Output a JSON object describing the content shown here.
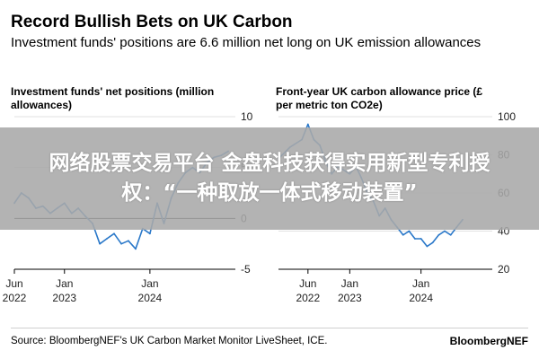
{
  "header": {
    "title": "Record Bullish Bets on UK Carbon",
    "subtitle": "Investment funds' positions are 6.6 million net long on UK emission allowances"
  },
  "banner": {
    "text": "网络股票交易平台 金盘科技获得实用新型专利授权：“一种取放一体式移动装置”"
  },
  "footer": {
    "source": "Source: BloombergNEF's UK Carbon Market Monitor LiveSheet, ICE.",
    "brand": "BloombergNEF"
  },
  "colors": {
    "line": "#2a78c9",
    "zero_line": "#000000",
    "axis": "#000000"
  },
  "chart_data": [
    {
      "type": "line",
      "title": "Investment funds' net positions (million allowances)",
      "xlabel": "",
      "ylabel": "",
      "ylim": [
        -5,
        10
      ],
      "yticks": [
        10,
        5,
        0,
        -5
      ],
      "xlim": [
        "2022-06-01",
        "2024-12-31"
      ],
      "xticks": [
        {
          "date": "2022-06-01",
          "label": [
            "Jun",
            "2022"
          ]
        },
        {
          "date": "2023-01-01",
          "label": [
            "Jan",
            "2023"
          ]
        },
        {
          "date": "2024-01-01",
          "label": [
            "Jan",
            "2024"
          ]
        }
      ],
      "zero_line": 0,
      "x": [
        "2022-06-01",
        "2022-07-01",
        "2022-08-01",
        "2022-09-01",
        "2022-10-01",
        "2022-11-01",
        "2022-12-01",
        "2023-01-01",
        "2023-02-01",
        "2023-03-01",
        "2023-04-01",
        "2023-05-01",
        "2023-06-01",
        "2023-07-01",
        "2023-08-01",
        "2023-09-01",
        "2023-10-01",
        "2023-11-01",
        "2023-12-01",
        "2024-01-01",
        "2024-02-01",
        "2024-03-01",
        "2024-04-01",
        "2024-05-01",
        "2024-06-01",
        "2024-07-01",
        "2024-08-01",
        "2024-09-01",
        "2024-10-01",
        "2024-11-01",
        "2024-12-01"
      ],
      "values": [
        1.5,
        2.5,
        2.0,
        1.0,
        1.2,
        0.5,
        1.0,
        1.5,
        0.5,
        1.0,
        0.2,
        -0.5,
        -2.5,
        -2.0,
        -1.5,
        -2.5,
        -2.2,
        -3.0,
        -1.0,
        -1.5,
        1.5,
        -0.5,
        2.0,
        3.5,
        4.5,
        5.0,
        4.5,
        5.5,
        6.0,
        6.2,
        6.6
      ]
    },
    {
      "type": "line",
      "title": "Front-year UK carbon allowance price (£ per metric ton CO2e)",
      "xlabel": "",
      "ylabel": "",
      "ylim": [
        20,
        100
      ],
      "yticks": [
        100,
        80,
        60,
        40,
        20
      ],
      "xlim": [
        "2022-01-01",
        "2024-12-31"
      ],
      "xticks": [
        {
          "date": "2022-06-01",
          "label": [
            "Jun",
            "2022"
          ]
        },
        {
          "date": "2023-01-01",
          "label": [
            "Jan",
            "2023"
          ]
        },
        {
          "date": "2024-01-01",
          "label": [
            "Jan",
            "2024"
          ]
        }
      ],
      "x": [
        "2022-01-01",
        "2022-03-01",
        "2022-05-01",
        "2022-06-01",
        "2022-07-01",
        "2022-08-01",
        "2022-09-01",
        "2022-10-01",
        "2022-11-01",
        "2022-12-01",
        "2023-01-01",
        "2023-02-01",
        "2023-03-01",
        "2023-04-01",
        "2023-05-01",
        "2023-06-01",
        "2023-07-01",
        "2023-08-01",
        "2023-09-01",
        "2023-10-01",
        "2023-11-01",
        "2023-12-01",
        "2024-01-01",
        "2024-02-01",
        "2024-03-01",
        "2024-04-01",
        "2024-05-01",
        "2024-06-01",
        "2024-07-01",
        "2024-08-01"
      ],
      "values": [
        78,
        84,
        88,
        96,
        88,
        85,
        76,
        70,
        74,
        72,
        70,
        74,
        68,
        60,
        56,
        48,
        52,
        46,
        42,
        38,
        40,
        36,
        36,
        32,
        34,
        38,
        40,
        38,
        42,
        46
      ]
    }
  ]
}
